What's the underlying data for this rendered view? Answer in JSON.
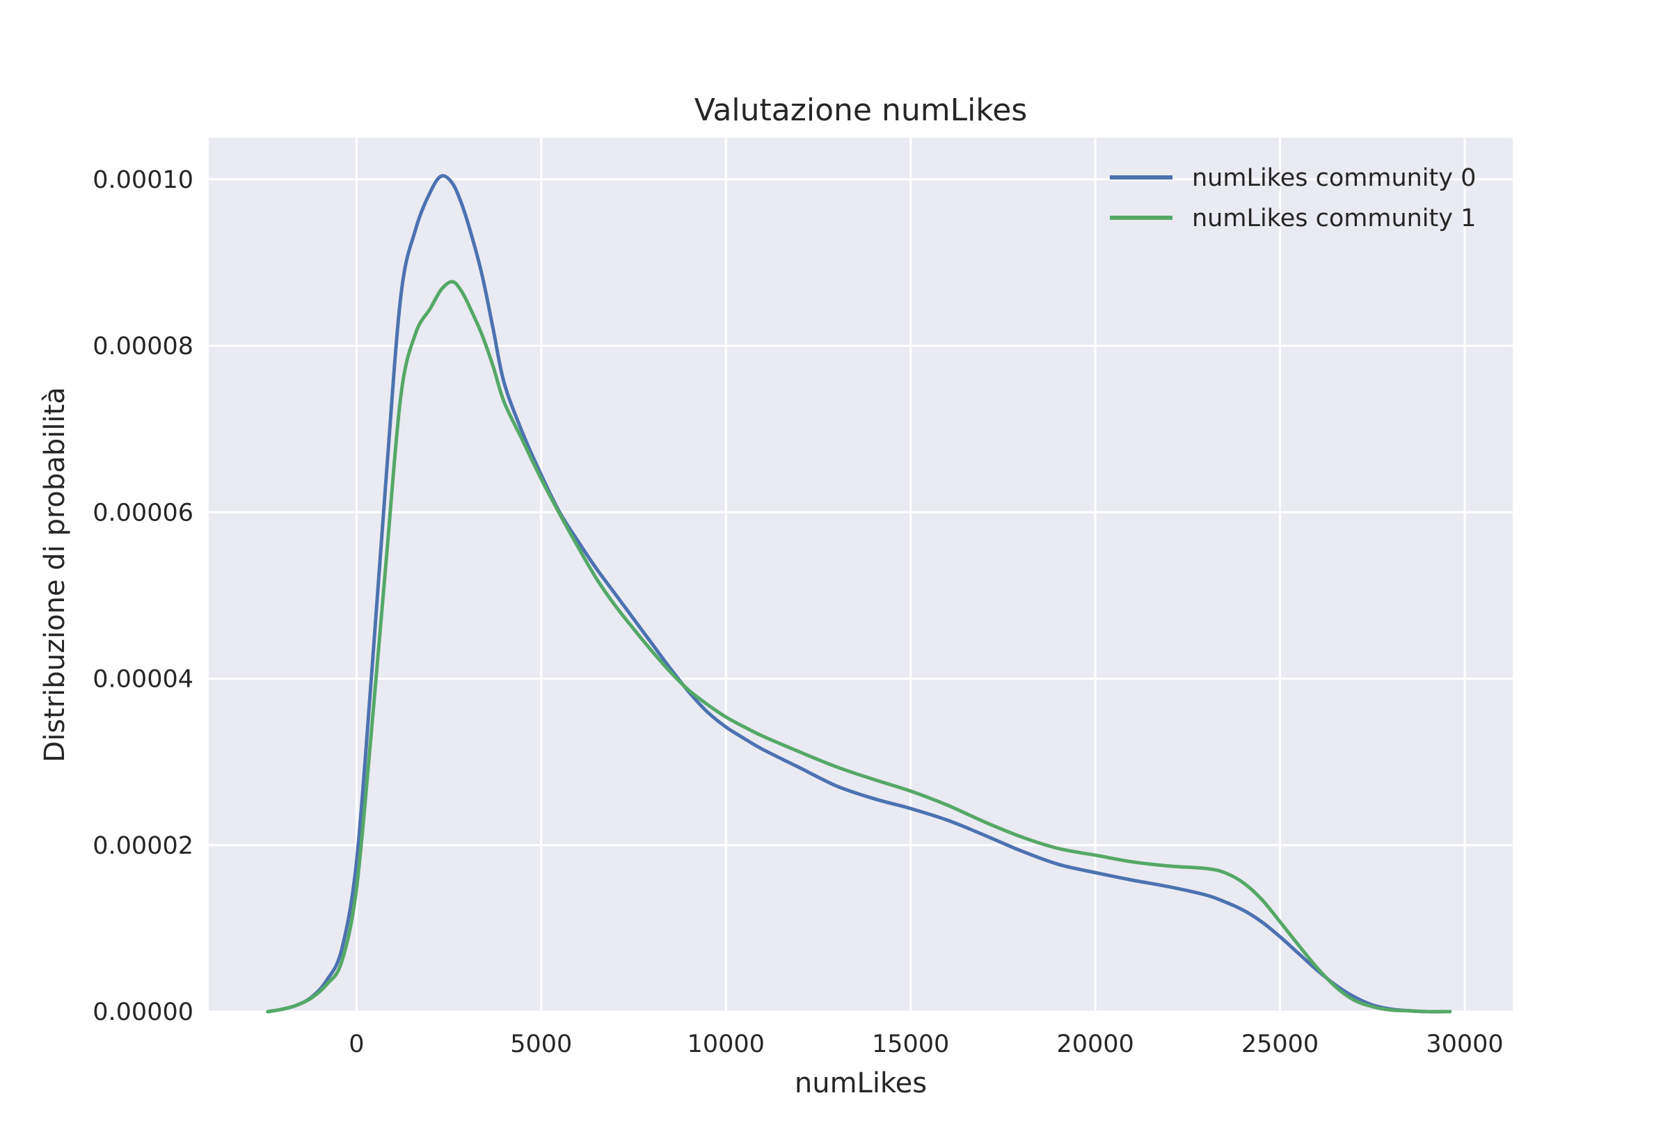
{
  "chart_data": {
    "type": "line",
    "title": "Valutazione numLikes",
    "xlabel": "numLikes",
    "ylabel": "Distribuzione di probabilità",
    "xlim": [
      -4000,
      31300
    ],
    "ylim": [
      0,
      0.000105
    ],
    "xticks": [
      0,
      5000,
      10000,
      15000,
      20000,
      25000,
      30000
    ],
    "xtick_labels": [
      "0",
      "5000",
      "10000",
      "15000",
      "20000",
      "25000",
      "30000"
    ],
    "yticks": [
      0,
      2e-05,
      4e-05,
      6e-05,
      8e-05,
      0.0001
    ],
    "ytick_labels": [
      "0.00000",
      "0.00002",
      "0.00004",
      "0.00006",
      "0.00008",
      "0.00010"
    ],
    "grid": true,
    "background": "#eaeaf2",
    "legend_position": "top-right",
    "series": [
      {
        "name": "numLikes community 0",
        "color": "#4c72b0",
        "x": [
          -2400,
          -2000,
          -1600,
          -1200,
          -800,
          -400,
          0,
          400,
          800,
          1200,
          1600,
          2000,
          2300,
          2600,
          2850,
          3100,
          3400,
          3700,
          4000,
          4500,
          5000,
          5500,
          6000,
          6500,
          7000,
          7500,
          8000,
          8500,
          9000,
          9500,
          10000,
          10500,
          11000,
          12000,
          13000,
          14000,
          15000,
          16000,
          17000,
          18000,
          19000,
          20000,
          21000,
          22000,
          23000,
          23500,
          24000,
          24500,
          25000,
          25500,
          26000,
          26500,
          27000,
          27500,
          28000,
          28500,
          29000,
          29600
        ],
        "y": [
          0.0,
          3e-07,
          8e-07,
          1.8e-06,
          3.8e-06,
          7.5e-06,
          1.8e-05,
          4e-05,
          6.4e-05,
          8.6e-05,
          9.4e-05,
          9.85e-05,
          0.0001004,
          9.95e-05,
          9.7e-05,
          9.35e-05,
          8.85e-05,
          8.2e-05,
          7.55e-05,
          6.95e-05,
          6.45e-05,
          6e-05,
          5.65e-05,
          5.32e-05,
          5.02e-05,
          4.72e-05,
          4.42e-05,
          4.12e-05,
          3.84e-05,
          3.6e-05,
          3.42e-05,
          3.28e-05,
          3.15e-05,
          2.93e-05,
          2.71e-05,
          2.56e-05,
          2.44e-05,
          2.3e-05,
          2.12e-05,
          1.93e-05,
          1.77e-05,
          1.67e-05,
          1.58e-05,
          1.5e-05,
          1.4e-05,
          1.32e-05,
          1.22e-05,
          1.08e-05,
          9e-06,
          7e-06,
          5e-06,
          3.2e-06,
          1.8e-06,
          8e-07,
          3e-07,
          1e-07,
          0.0,
          0.0
        ]
      },
      {
        "name": "numLikes community 1",
        "color": "#55a868",
        "x": [
          -2400,
          -2000,
          -1600,
          -1200,
          -800,
          -400,
          0,
          400,
          800,
          1200,
          1600,
          2000,
          2300,
          2600,
          2850,
          3100,
          3400,
          3700,
          4000,
          4500,
          5000,
          5500,
          6000,
          6500,
          7000,
          7500,
          8000,
          8500,
          9000,
          9500,
          10000,
          10500,
          11000,
          12000,
          13000,
          14000,
          15000,
          16000,
          17000,
          18000,
          19000,
          20000,
          21000,
          22000,
          23000,
          23500,
          24000,
          24500,
          25000,
          25500,
          26000,
          26500,
          27000,
          27500,
          28000,
          28500,
          29000,
          29600
        ],
        "y": [
          0.0,
          3e-07,
          8e-07,
          1.7e-06,
          3.3e-06,
          6e-06,
          1.48e-05,
          3.35e-05,
          5.4e-05,
          7.4e-05,
          8.15e-05,
          8.45e-05,
          8.68e-05,
          8.77e-05,
          8.65e-05,
          8.43e-05,
          8.13e-05,
          7.75e-05,
          7.32e-05,
          6.86e-05,
          6.4e-05,
          5.98e-05,
          5.58e-05,
          5.2e-05,
          4.88e-05,
          4.6e-05,
          4.33e-05,
          4.08e-05,
          3.86e-05,
          3.69e-05,
          3.54e-05,
          3.42e-05,
          3.31e-05,
          3.12e-05,
          2.94e-05,
          2.79e-05,
          2.65e-05,
          2.48e-05,
          2.28e-05,
          2.1e-05,
          1.96e-05,
          1.88e-05,
          1.8e-05,
          1.75e-05,
          1.72e-05,
          1.67e-05,
          1.55e-05,
          1.35e-05,
          1.08e-05,
          8e-06,
          5.3e-06,
          3e-06,
          1.4e-06,
          6e-07,
          2e-07,
          1e-07,
          0.0,
          0.0
        ]
      }
    ]
  }
}
